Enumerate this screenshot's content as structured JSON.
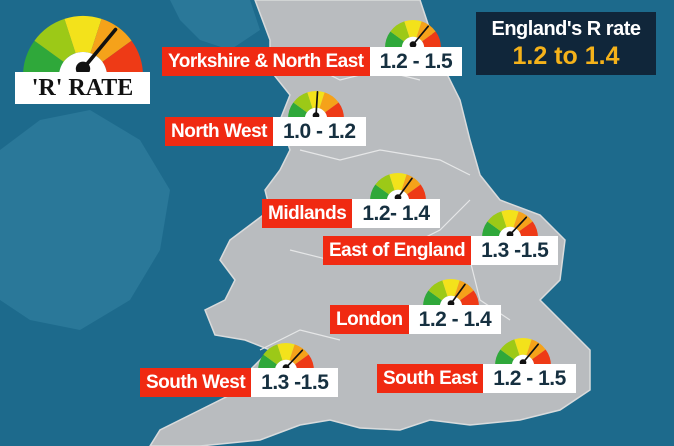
{
  "legend": {
    "label": "'R' RATE",
    "needle": 0.72
  },
  "headline": {
    "title": "England's R rate",
    "value": "1.2 to 1.4"
  },
  "colors": {
    "sea": "#1d6a8c",
    "land": "#b9bcbf",
    "label_red": "#f02a12",
    "headline_bg": "#10263a",
    "headline_value": "#f5b21a",
    "gauge": [
      "#2fa83a",
      "#9cc917",
      "#f3e21b",
      "#f5a21a",
      "#ee3a16"
    ]
  },
  "regions": [
    {
      "name": "Yorkshire & North East",
      "range": "1.2 - 1.5",
      "needle": 0.72
    },
    {
      "name": "North West",
      "range": "1.0 - 1.2",
      "needle": 0.52
    },
    {
      "name": "Midlands",
      "range": "1.2- 1.4",
      "needle": 0.7
    },
    {
      "name": "East of England",
      "range": "1.3 -1.5",
      "needle": 0.74
    },
    {
      "name": "London",
      "range": "1.2 - 1.4",
      "needle": 0.7
    },
    {
      "name": "South East",
      "range": "1.2 - 1.5",
      "needle": 0.72
    },
    {
      "name": "South West",
      "range": "1.3 -1.5",
      "needle": 0.74
    }
  ]
}
